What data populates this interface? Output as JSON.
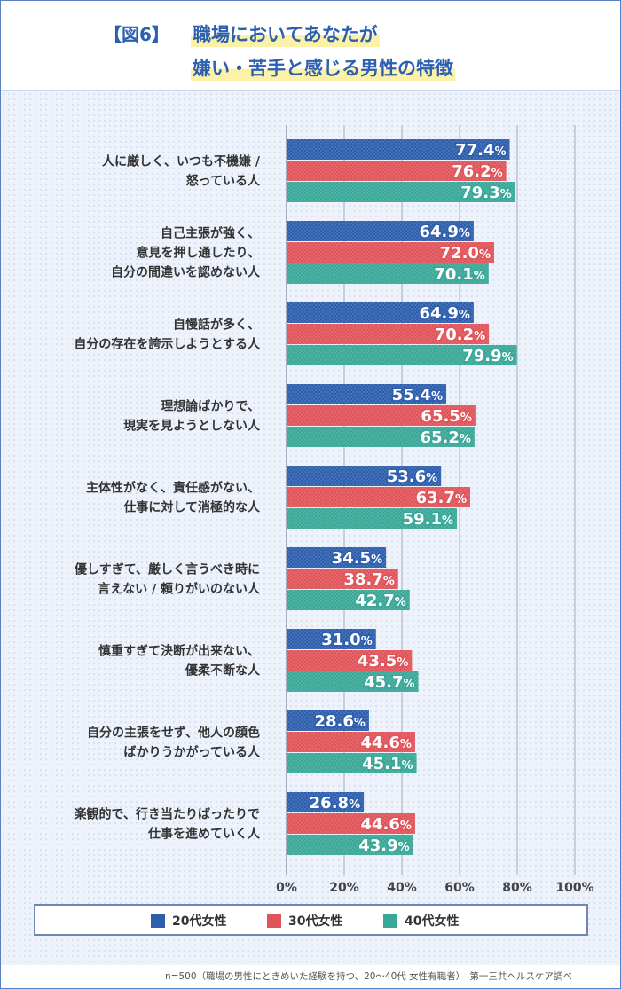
{
  "title": {
    "prefix": "【図6】",
    "line1": "職場においてあなたが",
    "line2": "嫌い・苦手と感じる男性の特徴"
  },
  "chart_data": {
    "type": "bar",
    "orientation": "horizontal",
    "categories": [
      [
        "人に厳しく、いつも不機嫌 /",
        "怒っている人"
      ],
      [
        "自己主張が強く、",
        "意見を押し通したり、",
        "自分の間違いを認めない人"
      ],
      [
        "自慢話が多く、",
        "自分の存在を誇示しようとする人"
      ],
      [
        "理想論ばかりで、",
        "現実を見ようとしない人"
      ],
      [
        "主体性がなく、責任感がない、",
        "仕事に対して消極的な人"
      ],
      [
        "優しすぎて、厳しく言うべき時に",
        "言えない / 頼りがいのない人"
      ],
      [
        "慎重すぎて決断が出来ない、",
        "優柔不断な人"
      ],
      [
        "自分の主張をせず、他人の顔色",
        "ばかりうかがっている人"
      ],
      [
        "楽観的で、行き当たりばったりで",
        "仕事を進めていく人"
      ]
    ],
    "series": [
      {
        "name": "20代女性",
        "color": "#2e5fae",
        "values": [
          77.4,
          64.9,
          64.9,
          55.4,
          53.6,
          34.5,
          31.0,
          28.6,
          26.8
        ]
      },
      {
        "name": "30代女性",
        "color": "#e0545a",
        "values": [
          76.2,
          72.0,
          70.2,
          65.5,
          63.7,
          38.7,
          43.5,
          44.6,
          44.6
        ]
      },
      {
        "name": "40代女性",
        "color": "#3aa898",
        "values": [
          79.3,
          70.1,
          79.9,
          65.2,
          59.1,
          42.7,
          45.7,
          45.1,
          43.9
        ]
      }
    ],
    "value_suffix": "%",
    "xlim": [
      0,
      100
    ],
    "ticks": [
      "0%",
      "20%",
      "40%",
      "60%",
      "80%",
      "100%"
    ],
    "grid": true,
    "legend_position": "bottom"
  },
  "footnote": "n=500（職場の男性にときめいた経験を持つ、20〜40代 女性有職者）　第一三共ヘルスケア調べ"
}
